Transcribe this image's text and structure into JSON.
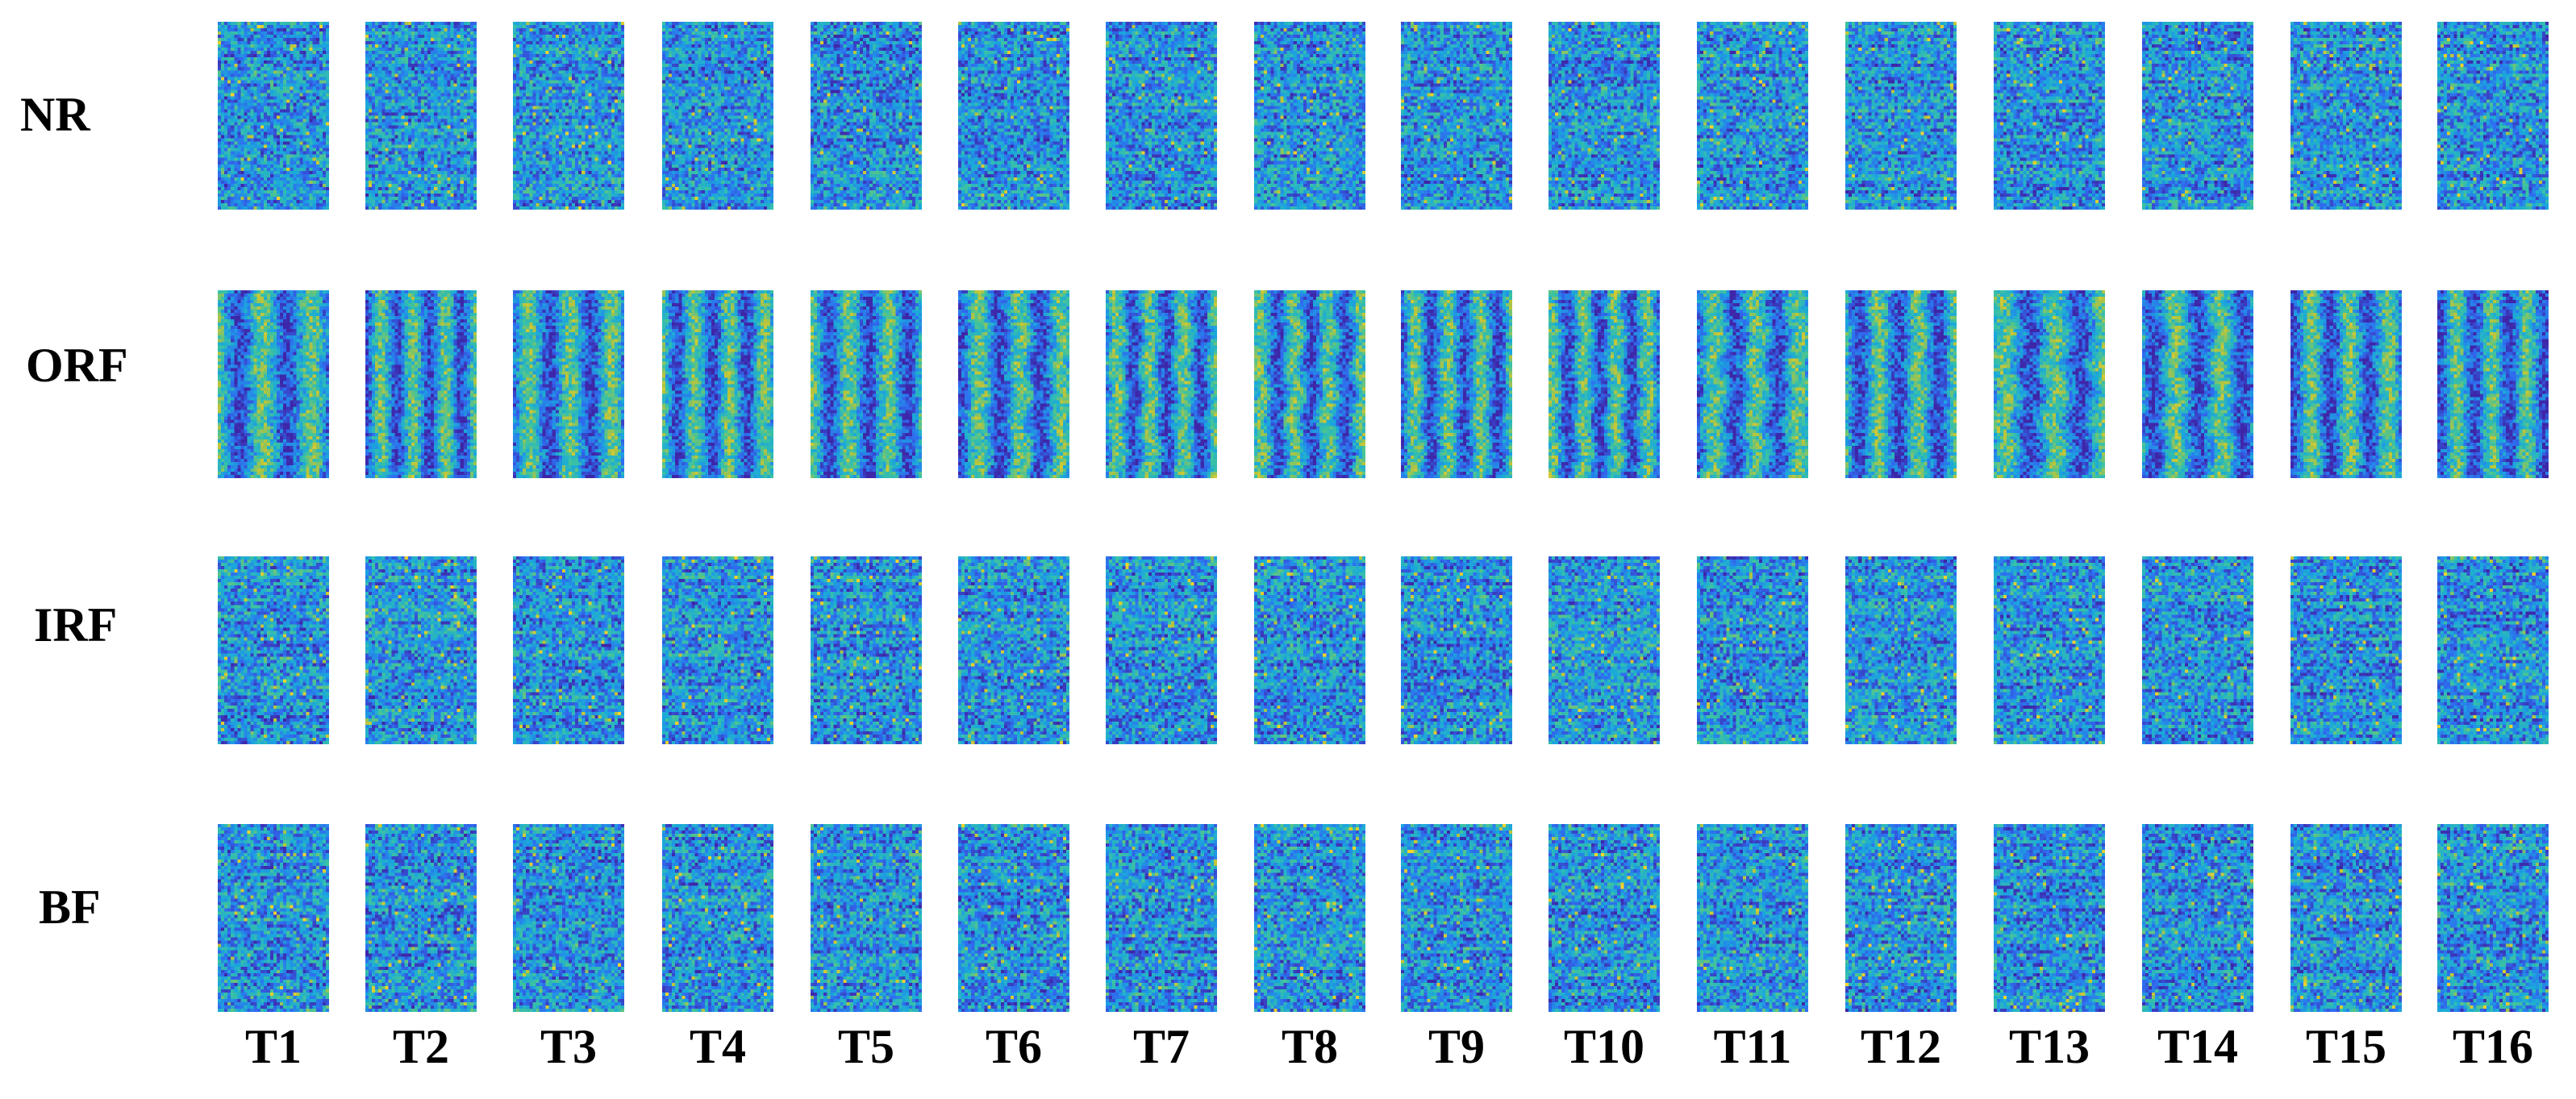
{
  "chart_data": {
    "type": "heatmap",
    "rows": [
      "NR",
      "ORF",
      "IRF",
      "BF"
    ],
    "columns": [
      "T1",
      "T2",
      "T3",
      "T4",
      "T5",
      "T6",
      "T7",
      "T8",
      "T9",
      "T10",
      "T11",
      "T12",
      "T13",
      "T14",
      "T15",
      "T16"
    ],
    "colormap": [
      "#3e26a8",
      "#2f6cf0",
      "#1aa8dc",
      "#3cc3a0",
      "#b8c43c",
      "#f9d42a"
    ],
    "patterns": {
      "NR": "noise",
      "ORF": "vertical-bands",
      "IRF": "noise",
      "BF": "noise"
    },
    "title": ""
  }
}
